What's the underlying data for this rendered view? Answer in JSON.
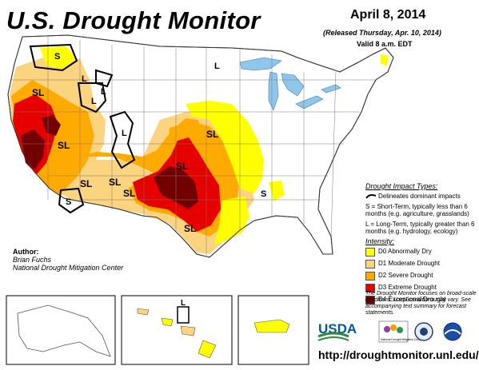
{
  "header": {
    "title": "U.S. Drought Monitor",
    "date": "April 8, 2014",
    "released": "(Released Thursday, Apr. 10, 2014)",
    "valid": "Valid 8 a.m. EDT"
  },
  "legend": {
    "impact_header": "Drought Impact Types:",
    "boundary_text": "Delineates dominant impacts",
    "short_term_text": "S = Short-Term, typically less than 6 months (e.g. agriculture, grasslands)",
    "long_term_text": "L = Long-Term, typically greater than 6 months (e.g. hydrology, ecology)",
    "intensity_header": "Intensity:",
    "categories": [
      {
        "label": "D0 Abnormally Dry",
        "color": "#ffff00"
      },
      {
        "label": "D1 Moderate Drought",
        "color": "#fcd37f"
      },
      {
        "label": "D2 Severe Drought",
        "color": "#ffaa00"
      },
      {
        "label": "D3 Extreme Drought",
        "color": "#e60000"
      },
      {
        "label": "D4 Exceptional Drought",
        "color": "#730000"
      }
    ]
  },
  "map_labels": {
    "S": "S",
    "L": "L",
    "SL": "SL"
  },
  "author": {
    "label": "Author:",
    "name": "Brian Fuchs",
    "org": "National Drought Mitigation Center"
  },
  "note": "The Drought Monitor focuses on broad-scale conditions. Local conditions may vary. See accompanying text summary for forecast statements.",
  "logos": {
    "usda": "USDA",
    "ndmc": "National Drought Mitigation Center"
  },
  "url": "http://droughtmonitor.unl.edu/",
  "colors": {
    "water": "#8fc6ea",
    "d0": "#ffff00",
    "d1": "#fcd37f",
    "d2": "#ffaa00",
    "d3": "#e60000",
    "d4": "#730000"
  }
}
